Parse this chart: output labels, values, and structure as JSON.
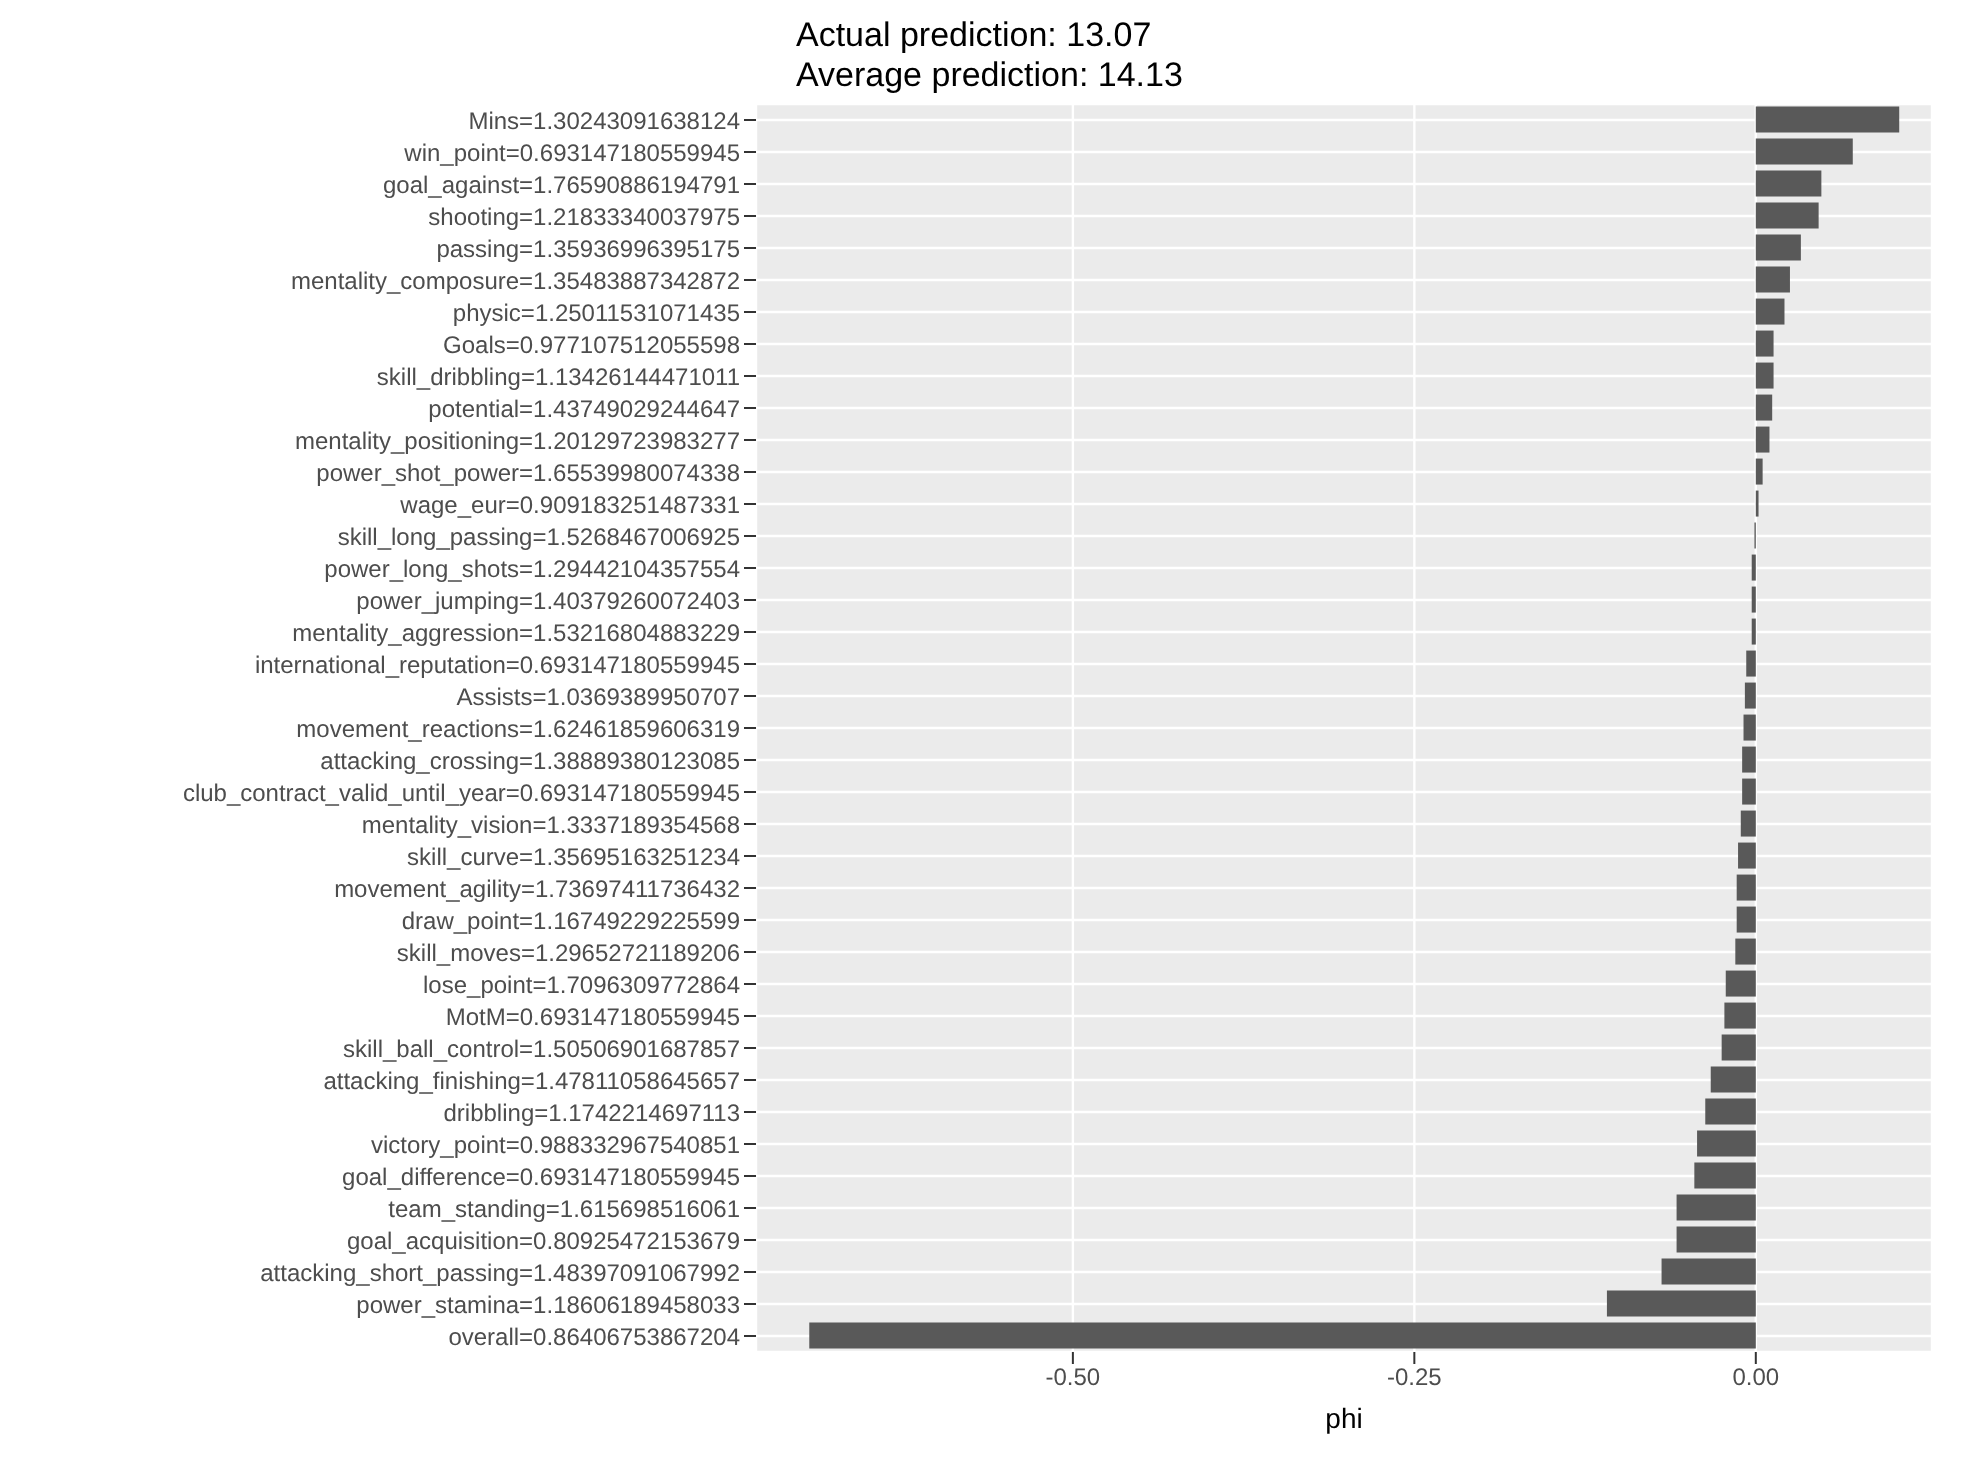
{
  "chart_data": {
    "type": "bar",
    "orientation": "horizontal",
    "title": "Actual prediction: 13.07",
    "subtitle": "Average prediction: 14.13",
    "xlabel": "phi",
    "categories": [
      "Mins=1.30243091638124",
      "win_point=0.693147180559945",
      "goal_against=1.76590886194791",
      "shooting=1.21833340037975",
      "passing=1.35936996395175",
      "mentality_composure=1.35483887342872",
      "physic=1.25011531071435",
      "Goals=0.977107512055598",
      "skill_dribbling=1.13426144471011",
      "potential=1.43749029244647",
      "mentality_positioning=1.20129723983277",
      "power_shot_power=1.65539980074338",
      "wage_eur=0.909183251487331",
      "skill_long_passing=1.5268467006925",
      "power_long_shots=1.29442104357554",
      "power_jumping=1.40379260072403",
      "mentality_aggression=1.53216804883229",
      "international_reputation=0.693147180559945",
      "Assists=1.0369389950707",
      "movement_reactions=1.62461859606319",
      "attacking_crossing=1.38889380123085",
      "club_contract_valid_until_year=0.693147180559945",
      "mentality_vision=1.3337189354568",
      "skill_curve=1.35695163251234",
      "movement_agility=1.73697411736432",
      "draw_point=1.16749229225599",
      "skill_moves=1.29652721189206",
      "lose_point=1.7096309772864",
      "MotM=0.693147180559945",
      "skill_ball_control=1.50506901687857",
      "attacking_finishing=1.47811058645657",
      "dribbling=1.1742214697113",
      "victory_point=0.988332967540851",
      "goal_difference=0.693147180559945",
      "team_standing=1.615698516061",
      "goal_acquisition=0.80925472153679",
      "attacking_short_passing=1.48397091067992",
      "power_stamina=1.18606189458033",
      "overall=0.86406753867204"
    ],
    "values": [
      0.105,
      0.071,
      0.048,
      0.046,
      0.033,
      0.025,
      0.021,
      0.013,
      0.013,
      0.012,
      0.01,
      0.005,
      0.002,
      -0.001,
      -0.003,
      -0.003,
      -0.003,
      -0.007,
      -0.008,
      -0.009,
      -0.01,
      -0.01,
      -0.011,
      -0.013,
      -0.014,
      -0.014,
      -0.015,
      -0.022,
      -0.023,
      -0.025,
      -0.033,
      -0.037,
      -0.043,
      -0.045,
      -0.058,
      -0.058,
      -0.069,
      -0.109,
      -0.693
    ],
    "color": "#595959",
    "xlim": [
      -0.732,
      0.129
    ],
    "xticks": [
      {
        "value": -0.5,
        "label": "-0.50"
      },
      {
        "value": -0.25,
        "label": "-0.25"
      },
      {
        "value": 0,
        "label": "0.00"
      }
    ],
    "grid": true
  }
}
